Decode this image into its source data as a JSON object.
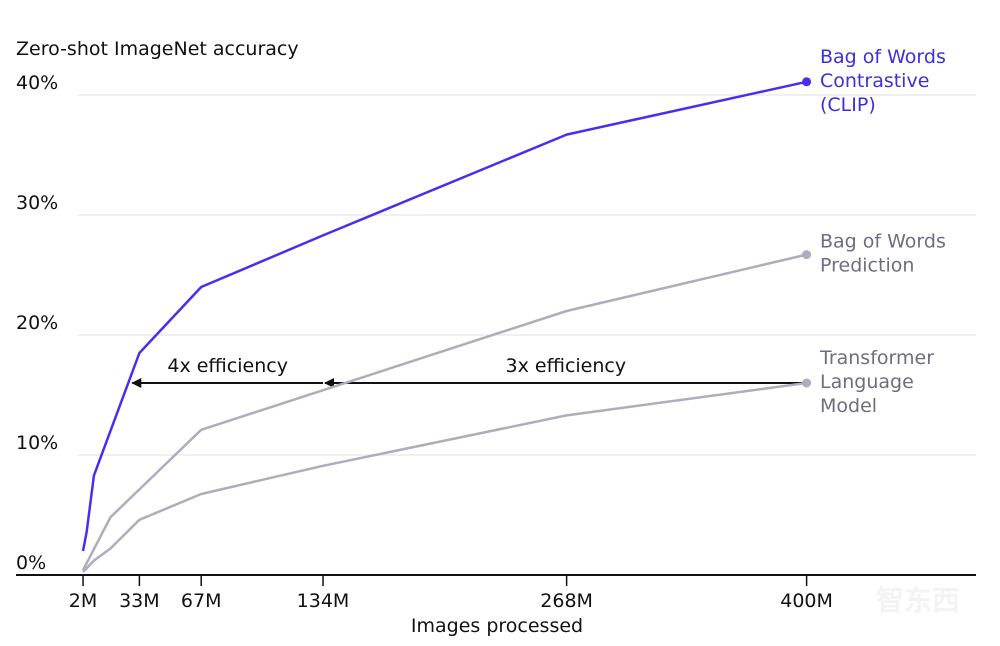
{
  "chart_data": {
    "type": "line",
    "ylabel": "Zero-shot ImageNet accuracy",
    "xlabel": "Images processed",
    "xlim": [
      0,
      480
    ],
    "ylim": [
      0,
      40
    ],
    "x_ticks": [
      2,
      33,
      67,
      134,
      268,
      400
    ],
    "x_tick_labels": [
      "2M",
      "33M",
      "67M",
      "134M",
      "268M",
      "400M"
    ],
    "y_ticks": [
      0,
      10,
      20,
      30,
      40
    ],
    "y_tick_labels": [
      "0%",
      "10%",
      "20%",
      "30%",
      "40%"
    ],
    "grid": "horizontal",
    "series": [
      {
        "name": "Bag of Words Contrastive (CLIP)",
        "label_lines": [
          "Bag of Words",
          "Contrastive",
          "(CLIP)"
        ],
        "color": "#4a2ef0",
        "label_color": "#3b2fe0",
        "x": [
          2,
          4,
          8,
          33,
          67,
          134,
          268,
          400
        ],
        "y": [
          2.0,
          3.6,
          8.3,
          18.5,
          24.0,
          28.3,
          36.7,
          41.1
        ]
      },
      {
        "name": "Bag of Words Prediction",
        "label_lines": [
          "Bag of Words",
          "Prediction"
        ],
        "color": "#aeadbb",
        "label_color": "#6e6d80",
        "x": [
          2,
          17,
          67,
          268,
          400
        ],
        "y": [
          0.4,
          4.8,
          12.1,
          22.0,
          26.7
        ]
      },
      {
        "name": "Transformer Language Model",
        "label_lines": [
          "Transformer",
          "Language",
          "Model"
        ],
        "color": "#aeadbb",
        "label_color": "#6e6d80",
        "x": [
          2,
          8,
          17,
          33,
          67,
          134,
          268,
          400
        ],
        "y": [
          0.25,
          1.2,
          2.2,
          4.6,
          6.75,
          9.1,
          13.3,
          16.0
        ]
      }
    ],
    "annotations": [
      {
        "text": "4x efficiency",
        "from_x": 134,
        "to_x": 28,
        "y": 16
      },
      {
        "text": "3x efficiency",
        "from_x": 400,
        "to_x": 134,
        "y": 16
      }
    ]
  }
}
